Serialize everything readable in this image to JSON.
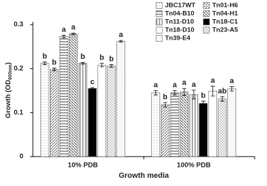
{
  "chart_data": {
    "type": "bar",
    "ylabel_parts": [
      "Growth (OD",
      "600nm",
      ")"
    ],
    "xlabel": "Growth media",
    "categories": [
      "10% PDB",
      "100% PDB"
    ],
    "ylim": [
      0,
      0.3
    ],
    "yticks": [
      0,
      0.1,
      0.2,
      0.3
    ],
    "series": [
      {
        "name": "JBC17WT",
        "color": "#9a9a9a",
        "values": [
          0.212,
          0.145
        ],
        "errors": [
          0.003,
          0.005
        ],
        "letters": [
          "b",
          "a"
        ]
      },
      {
        "name": "Tn01-H6",
        "color": "#6e6e6e",
        "values": [
          0.198,
          0.118
        ],
        "errors": [
          0.003,
          0.005
        ],
        "letters": [
          "b",
          "b"
        ]
      },
      {
        "name": "Tn04-B10",
        "color": "#7a7a7a",
        "values": [
          0.273,
          0.145
        ],
        "errors": [
          0.003,
          0.005
        ],
        "letters": [
          "a",
          "a"
        ]
      },
      {
        "name": "Tn04-H1",
        "color": "#6a6a6a",
        "values": [
          0.279,
          0.147
        ],
        "errors": [
          0.002,
          0.008
        ],
        "letters": [
          "a",
          "a"
        ]
      },
      {
        "name": "Tn11-D10",
        "color": "#8a8a8a",
        "values": [
          0.212,
          0.141
        ],
        "errors": [
          0.002,
          0.01
        ],
        "letters": [
          "b",
          "a"
        ]
      },
      {
        "name": "Tn18-C1",
        "color": "#000000",
        "values": [
          0.155,
          0.121
        ],
        "errors": [
          0.002,
          0.005
        ],
        "letters": [
          "c",
          "b"
        ]
      },
      {
        "name": "Tn18-D10",
        "color": "#ffffff",
        "values": [
          0.208,
          0.149
        ],
        "errors": [
          0.004,
          0.011
        ],
        "letters": [
          "b",
          "a"
        ]
      },
      {
        "name": "Tn23-A5",
        "color": "#8e8e8e",
        "values": [
          0.206,
          0.131
        ],
        "errors": [
          0.003,
          0.005
        ],
        "letters": [
          "b",
          "ab"
        ]
      },
      {
        "name": "Tn39-E4",
        "color": "#b0b0b0",
        "values": [
          0.262,
          0.154
        ],
        "errors": [
          0.002,
          0.005
        ],
        "letters": [
          "a",
          "a"
        ]
      }
    ]
  }
}
